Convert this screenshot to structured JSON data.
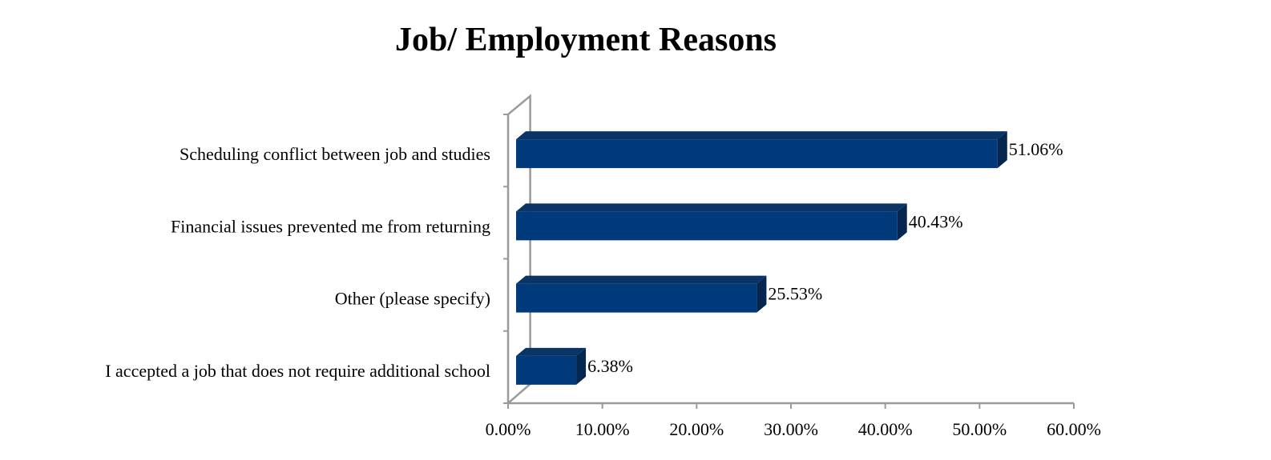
{
  "chart_data": {
    "type": "bar",
    "orientation": "horizontal",
    "title": "Job/ Employment Reasons",
    "categories": [
      "Scheduling conflict between job and studies",
      "Financial issues prevented me from returning",
      "Other (please specify)",
      "I accepted a job that does not require additional school"
    ],
    "values": [
      51.06,
      40.43,
      25.53,
      6.38
    ],
    "data_labels": [
      "51.06%",
      "40.43%",
      "25.53%",
      "6.38%"
    ],
    "xlim": [
      0,
      60
    ],
    "x_ticks": [
      0,
      10,
      20,
      30,
      40,
      50,
      60
    ],
    "x_tick_labels": [
      "0.00%",
      "10.00%",
      "20.00%",
      "30.00%",
      "40.00%",
      "50.00%",
      "60.00%"
    ],
    "grid": false,
    "legend": "none",
    "colors": {
      "bar_front": "#003a7a",
      "bar_top": "#0b3466",
      "bar_side": "#06254f",
      "axis": "#9a9a9a"
    }
  }
}
